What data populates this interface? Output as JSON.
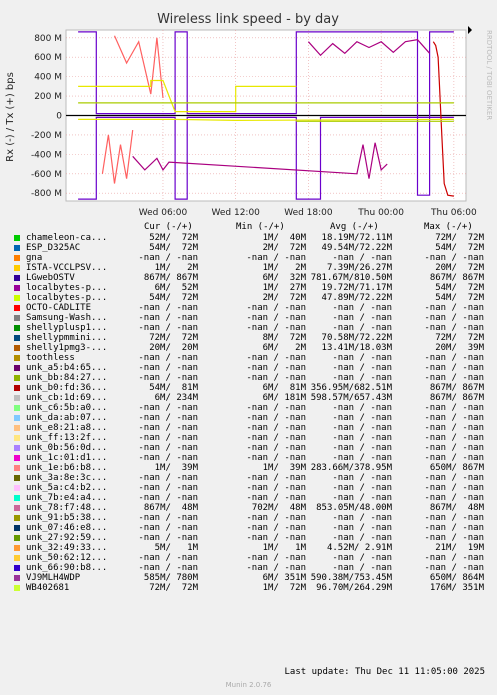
{
  "chart_data": {
    "type": "line",
    "title": "Wireless link speed - by day",
    "ylabel": "Rx (-) / Tx (+) bps",
    "watermark": "RRDTOOL / TOBI OETIKER",
    "ylim": [
      -880,
      880
    ],
    "yticks": [
      {
        "v": 800,
        "label": "800 M"
      },
      {
        "v": 600,
        "label": "600 M"
      },
      {
        "v": 400,
        "label": "400 M"
      },
      {
        "v": 200,
        "label": "200 M"
      },
      {
        "v": 0,
        "label": "0"
      },
      {
        "v": -200,
        "label": "-200 M"
      },
      {
        "v": -400,
        "label": "-400 M"
      },
      {
        "v": -600,
        "label": "-600 M"
      },
      {
        "v": -800,
        "label": "-800 M"
      }
    ],
    "xlim": [
      -2,
      31
    ],
    "xticks": [
      {
        "h": 6,
        "label": "Wed 06:00"
      },
      {
        "h": 12,
        "label": "Wed 12:00"
      },
      {
        "h": 18,
        "label": "Wed 18:00"
      },
      {
        "h": 24,
        "label": "Thu 00:00"
      },
      {
        "h": 30,
        "label": "Thu 06:00"
      }
    ],
    "series": [
      {
        "name": "LGwebOSTV",
        "color": "#6a00cc",
        "tx": [
          [
            -1,
            860
          ],
          [
            0.5,
            860
          ],
          [
            0.5,
            20
          ],
          [
            7,
            20
          ],
          [
            7,
            860
          ],
          [
            8,
            860
          ],
          [
            8,
            20
          ],
          [
            17,
            20
          ],
          [
            17,
            860
          ],
          [
            27,
            860
          ],
          [
            27,
            -820
          ],
          [
            28,
            -820
          ],
          [
            28,
            860
          ],
          [
            30,
            860
          ]
        ],
        "rx": [
          [
            -1,
            -860
          ],
          [
            0.5,
            -860
          ],
          [
            0.5,
            -20
          ],
          [
            7,
            -20
          ],
          [
            7,
            -860
          ],
          [
            8,
            -860
          ],
          [
            8,
            -20
          ],
          [
            17,
            -20
          ],
          [
            17,
            -860
          ],
          [
            19,
            -860
          ],
          [
            19,
            -20
          ],
          [
            30,
            -20
          ]
        ]
      },
      {
        "name": "localbytes-p...",
        "color": "#cc0000",
        "tx": [
          [
            28.3,
            760
          ],
          [
            28.5,
            720
          ],
          [
            28.7,
            600
          ],
          [
            28.8,
            350
          ],
          [
            29,
            -200
          ],
          [
            29.2,
            -700
          ],
          [
            29.5,
            -820
          ],
          [
            30,
            -830
          ]
        ],
        "rx": []
      },
      {
        "name": "unk_b0:fd:36...",
        "color": "#aa0080",
        "tx": [
          [
            18,
            760
          ],
          [
            19,
            620
          ],
          [
            20,
            740
          ],
          [
            21,
            640
          ],
          [
            22,
            760
          ],
          [
            23,
            700
          ],
          [
            24,
            760
          ],
          [
            25,
            650
          ],
          [
            26,
            760
          ],
          [
            27,
            780
          ],
          [
            28,
            640
          ]
        ],
        "rx": [
          [
            3.5,
            -420
          ],
          [
            4.5,
            -560
          ],
          [
            5.5,
            -440
          ],
          [
            6,
            -560
          ],
          [
            6.5,
            -480
          ],
          [
            22,
            -600
          ],
          [
            22.5,
            -300
          ],
          [
            23,
            -650
          ],
          [
            23.5,
            -280
          ],
          [
            24,
            -560
          ],
          [
            24.5,
            -500
          ]
        ]
      },
      {
        "name": "chameleon-ca...",
        "color": "#ff6060",
        "tx": [
          [
            2,
            820
          ],
          [
            3,
            540
          ],
          [
            4,
            760
          ],
          [
            5,
            220
          ],
          [
            5.5,
            800
          ],
          [
            6,
            180
          ]
        ],
        "rx": [
          [
            1,
            -600
          ],
          [
            1.5,
            -200
          ],
          [
            2,
            -700
          ],
          [
            2.5,
            -300
          ],
          [
            3,
            -650
          ],
          [
            3.5,
            -150
          ]
        ]
      },
      {
        "name": "ISTA-VCCLPSV...",
        "color": "#e8e800",
        "tx": [
          [
            -1,
            300
          ],
          [
            5,
            300
          ],
          [
            5,
            360
          ],
          [
            6,
            360
          ],
          [
            7,
            40
          ],
          [
            12,
            40
          ],
          [
            12,
            300
          ],
          [
            17,
            300
          ]
        ],
        "rx": [
          [
            -1,
            -40
          ],
          [
            7,
            -40
          ],
          [
            12,
            -50
          ],
          [
            30,
            -40
          ]
        ]
      },
      {
        "name": "WB402681",
        "color": "#aacc00",
        "tx": [
          [
            -1,
            130
          ],
          [
            30,
            130
          ]
        ],
        "rx": [
          [
            17,
            -60
          ],
          [
            30,
            -60
          ]
        ]
      }
    ]
  },
  "legend": {
    "headers": {
      "cur": "Cur (-/+)",
      "min": "Min (-/+)",
      "avg": "Avg (-/+)",
      "max": "Max (-/+)"
    },
    "rows": [
      {
        "color": "#00cc00",
        "name": "chameleon-ca...",
        "cur": "52M/  72M",
        "min": "1M/  40M",
        "avg": "18.19M/72.11M",
        "max": "72M/  72M"
      },
      {
        "color": "#0066b3",
        "name": "ESP_D325AC",
        "cur": "54M/  72M",
        "min": "2M/  72M",
        "avg": "49.54M/72.22M",
        "max": "54M/  72M"
      },
      {
        "color": "#ff8000",
        "name": "gna",
        "cur": "-nan / -nan",
        "min": "-nan / -nan",
        "avg": "-nan / -nan",
        "max": "-nan / -nan"
      },
      {
        "color": "#ffcc00",
        "name": "ISTA-VCCLPSV...",
        "cur": "1M/   2M",
        "min": "1M/   2M",
        "avg": "7.39M/26.27M",
        "max": "20M/  72M"
      },
      {
        "color": "#330099",
        "name": "LGwebOSTV",
        "cur": "867M/ 867M",
        "min": "6M/  32M",
        "avg": "781.67M/810.50M",
        "max": "867M/ 867M"
      },
      {
        "color": "#990099",
        "name": "localbytes-p...",
        "cur": "6M/  52M",
        "min": "1M/  27M",
        "avg": "19.72M/71.17M",
        "max": "54M/  72M"
      },
      {
        "color": "#ccff00",
        "name": "localbytes-p...",
        "cur": "54M/  72M",
        "min": "2M/  72M",
        "avg": "47.89M/72.22M",
        "max": "54M/  72M"
      },
      {
        "color": "#ff0000",
        "name": "OCTO-CADLITE",
        "cur": "-nan / -nan",
        "min": "-nan / -nan",
        "avg": "-nan / -nan",
        "max": "-nan / -nan"
      },
      {
        "color": "#808080",
        "name": "Samsung-Wash...",
        "cur": "-nan / -nan",
        "min": "-nan / -nan",
        "avg": "-nan / -nan",
        "max": "-nan / -nan"
      },
      {
        "color": "#008f00",
        "name": "shellyplusp1...",
        "cur": "-nan / -nan",
        "min": "-nan / -nan",
        "avg": "-nan / -nan",
        "max": "-nan / -nan"
      },
      {
        "color": "#00487d",
        "name": "shellypmmini...",
        "cur": "72M/  72M",
        "min": "8M/  72M",
        "avg": "70.58M/72.22M",
        "max": "72M/  72M"
      },
      {
        "color": "#b35a00",
        "name": "shelly1pmg3-...",
        "cur": "20M/  20M",
        "min": "6M/   2M",
        "avg": "13.41M/18.03M",
        "max": "20M/  39M"
      },
      {
        "color": "#b38f00",
        "name": "toothless",
        "cur": "-nan / -nan",
        "min": "-nan / -nan",
        "avg": "-nan / -nan",
        "max": "-nan / -nan"
      },
      {
        "color": "#6b006b",
        "name": "unk_a5:b4:65...",
        "cur": "-nan / -nan",
        "min": "-nan / -nan",
        "avg": "-nan / -nan",
        "max": "-nan / -nan"
      },
      {
        "color": "#8fb300",
        "name": "unk_bb:84:27...",
        "cur": "-nan / -nan",
        "min": "-nan / -nan",
        "avg": "-nan / -nan",
        "max": "-nan / -nan"
      },
      {
        "color": "#b30000",
        "name": "unk_b0:fd:36...",
        "cur": "54M/  81M",
        "min": "6M/  81M",
        "avg": "356.95M/682.51M",
        "max": "867M/ 867M"
      },
      {
        "color": "#bebebe",
        "name": "unk_cb:1d:69...",
        "cur": "6M/ 234M",
        "min": "6M/ 181M",
        "avg": "598.57M/657.43M",
        "max": "867M/ 867M"
      },
      {
        "color": "#80ff80",
        "name": "unk_c6:5b:a0...",
        "cur": "-nan / -nan",
        "min": "-nan / -nan",
        "avg": "-nan / -nan",
        "max": "-nan / -nan"
      },
      {
        "color": "#80c9ff",
        "name": "unk_da:ab:07...",
        "cur": "-nan / -nan",
        "min": "-nan / -nan",
        "avg": "-nan / -nan",
        "max": "-nan / -nan"
      },
      {
        "color": "#ffc080",
        "name": "unk_e8:21:a8...",
        "cur": "-nan / -nan",
        "min": "-nan / -nan",
        "avg": "-nan / -nan",
        "max": "-nan / -nan"
      },
      {
        "color": "#ffe680",
        "name": "unk_ff:13:2f...",
        "cur": "-nan / -nan",
        "min": "-nan / -nan",
        "avg": "-nan / -nan",
        "max": "-nan / -nan"
      },
      {
        "color": "#aa80ff",
        "name": "unk_0b:56:0d...",
        "cur": "-nan / -nan",
        "min": "-nan / -nan",
        "avg": "-nan / -nan",
        "max": "-nan / -nan"
      },
      {
        "color": "#ee00cc",
        "name": "unk_1c:01:d1...",
        "cur": "-nan / -nan",
        "min": "-nan / -nan",
        "avg": "-nan / -nan",
        "max": "-nan / -nan"
      },
      {
        "color": "#ff8080",
        "name": "unk_1e:b6:b8...",
        "cur": "1M/  39M",
        "min": "1M/  39M",
        "avg": "283.66M/378.95M",
        "max": "650M/ 867M"
      },
      {
        "color": "#666600",
        "name": "unk_3a:8e:3c...",
        "cur": "-nan / -nan",
        "min": "-nan / -nan",
        "avg": "-nan / -nan",
        "max": "-nan / -nan"
      },
      {
        "color": "#ffbfff",
        "name": "unk_5a:c4:b2...",
        "cur": "-nan / -nan",
        "min": "-nan / -nan",
        "avg": "-nan / -nan",
        "max": "-nan / -nan"
      },
      {
        "color": "#00ffcc",
        "name": "unk_7b:e4:a4...",
        "cur": "-nan / -nan",
        "min": "-nan / -nan",
        "avg": "-nan / -nan",
        "max": "-nan / -nan"
      },
      {
        "color": "#cc6699",
        "name": "unk_78:f7:48...",
        "cur": "867M/  48M",
        "min": "702M/  48M",
        "avg": "853.05M/48.00M",
        "max": "867M/  48M"
      },
      {
        "color": "#999900",
        "name": "unk_91:b5:38...",
        "cur": "-nan / -nan",
        "min": "-nan / -nan",
        "avg": "-nan / -nan",
        "max": "-nan / -nan"
      },
      {
        "color": "#003366",
        "name": "unk_07:46:e8...",
        "cur": "-nan / -nan",
        "min": "-nan / -nan",
        "avg": "-nan / -nan",
        "max": "-nan / -nan"
      },
      {
        "color": "#669900",
        "name": "unk_27:92:59...",
        "cur": "-nan / -nan",
        "min": "-nan / -nan",
        "avg": "-nan / -nan",
        "max": "-nan / -nan"
      },
      {
        "color": "#ff9933",
        "name": "unk_32:49:33...",
        "cur": "5M/   1M",
        "min": "1M/   1M",
        "avg": "4.52M/ 2.91M",
        "max": "21M/  19M"
      },
      {
        "color": "#ffcc33",
        "name": "unk_50:62:12...",
        "cur": "-nan / -nan",
        "min": "-nan / -nan",
        "avg": "-nan / -nan",
        "max": "-nan / -nan"
      },
      {
        "color": "#3300cc",
        "name": "unk_66:90:b8...",
        "cur": "-nan / -nan",
        "min": "-nan / -nan",
        "avg": "-nan / -nan",
        "max": "-nan / -nan"
      },
      {
        "color": "#993399",
        "name": "VJ9MLH4WDP",
        "cur": "585M/ 780M",
        "min": "6M/ 351M",
        "avg": "590.38M/753.45M",
        "max": "650M/ 864M"
      },
      {
        "color": "#ccff33",
        "name": "WB402681",
        "cur": "72M/  72M",
        "min": "1M/  72M",
        "avg": "96.70M/264.29M",
        "max": "176M/ 351M"
      }
    ],
    "last_update": "Last update: Thu Dec 11 11:05:00 2025",
    "munin_version": "Munin 2.0.76"
  }
}
